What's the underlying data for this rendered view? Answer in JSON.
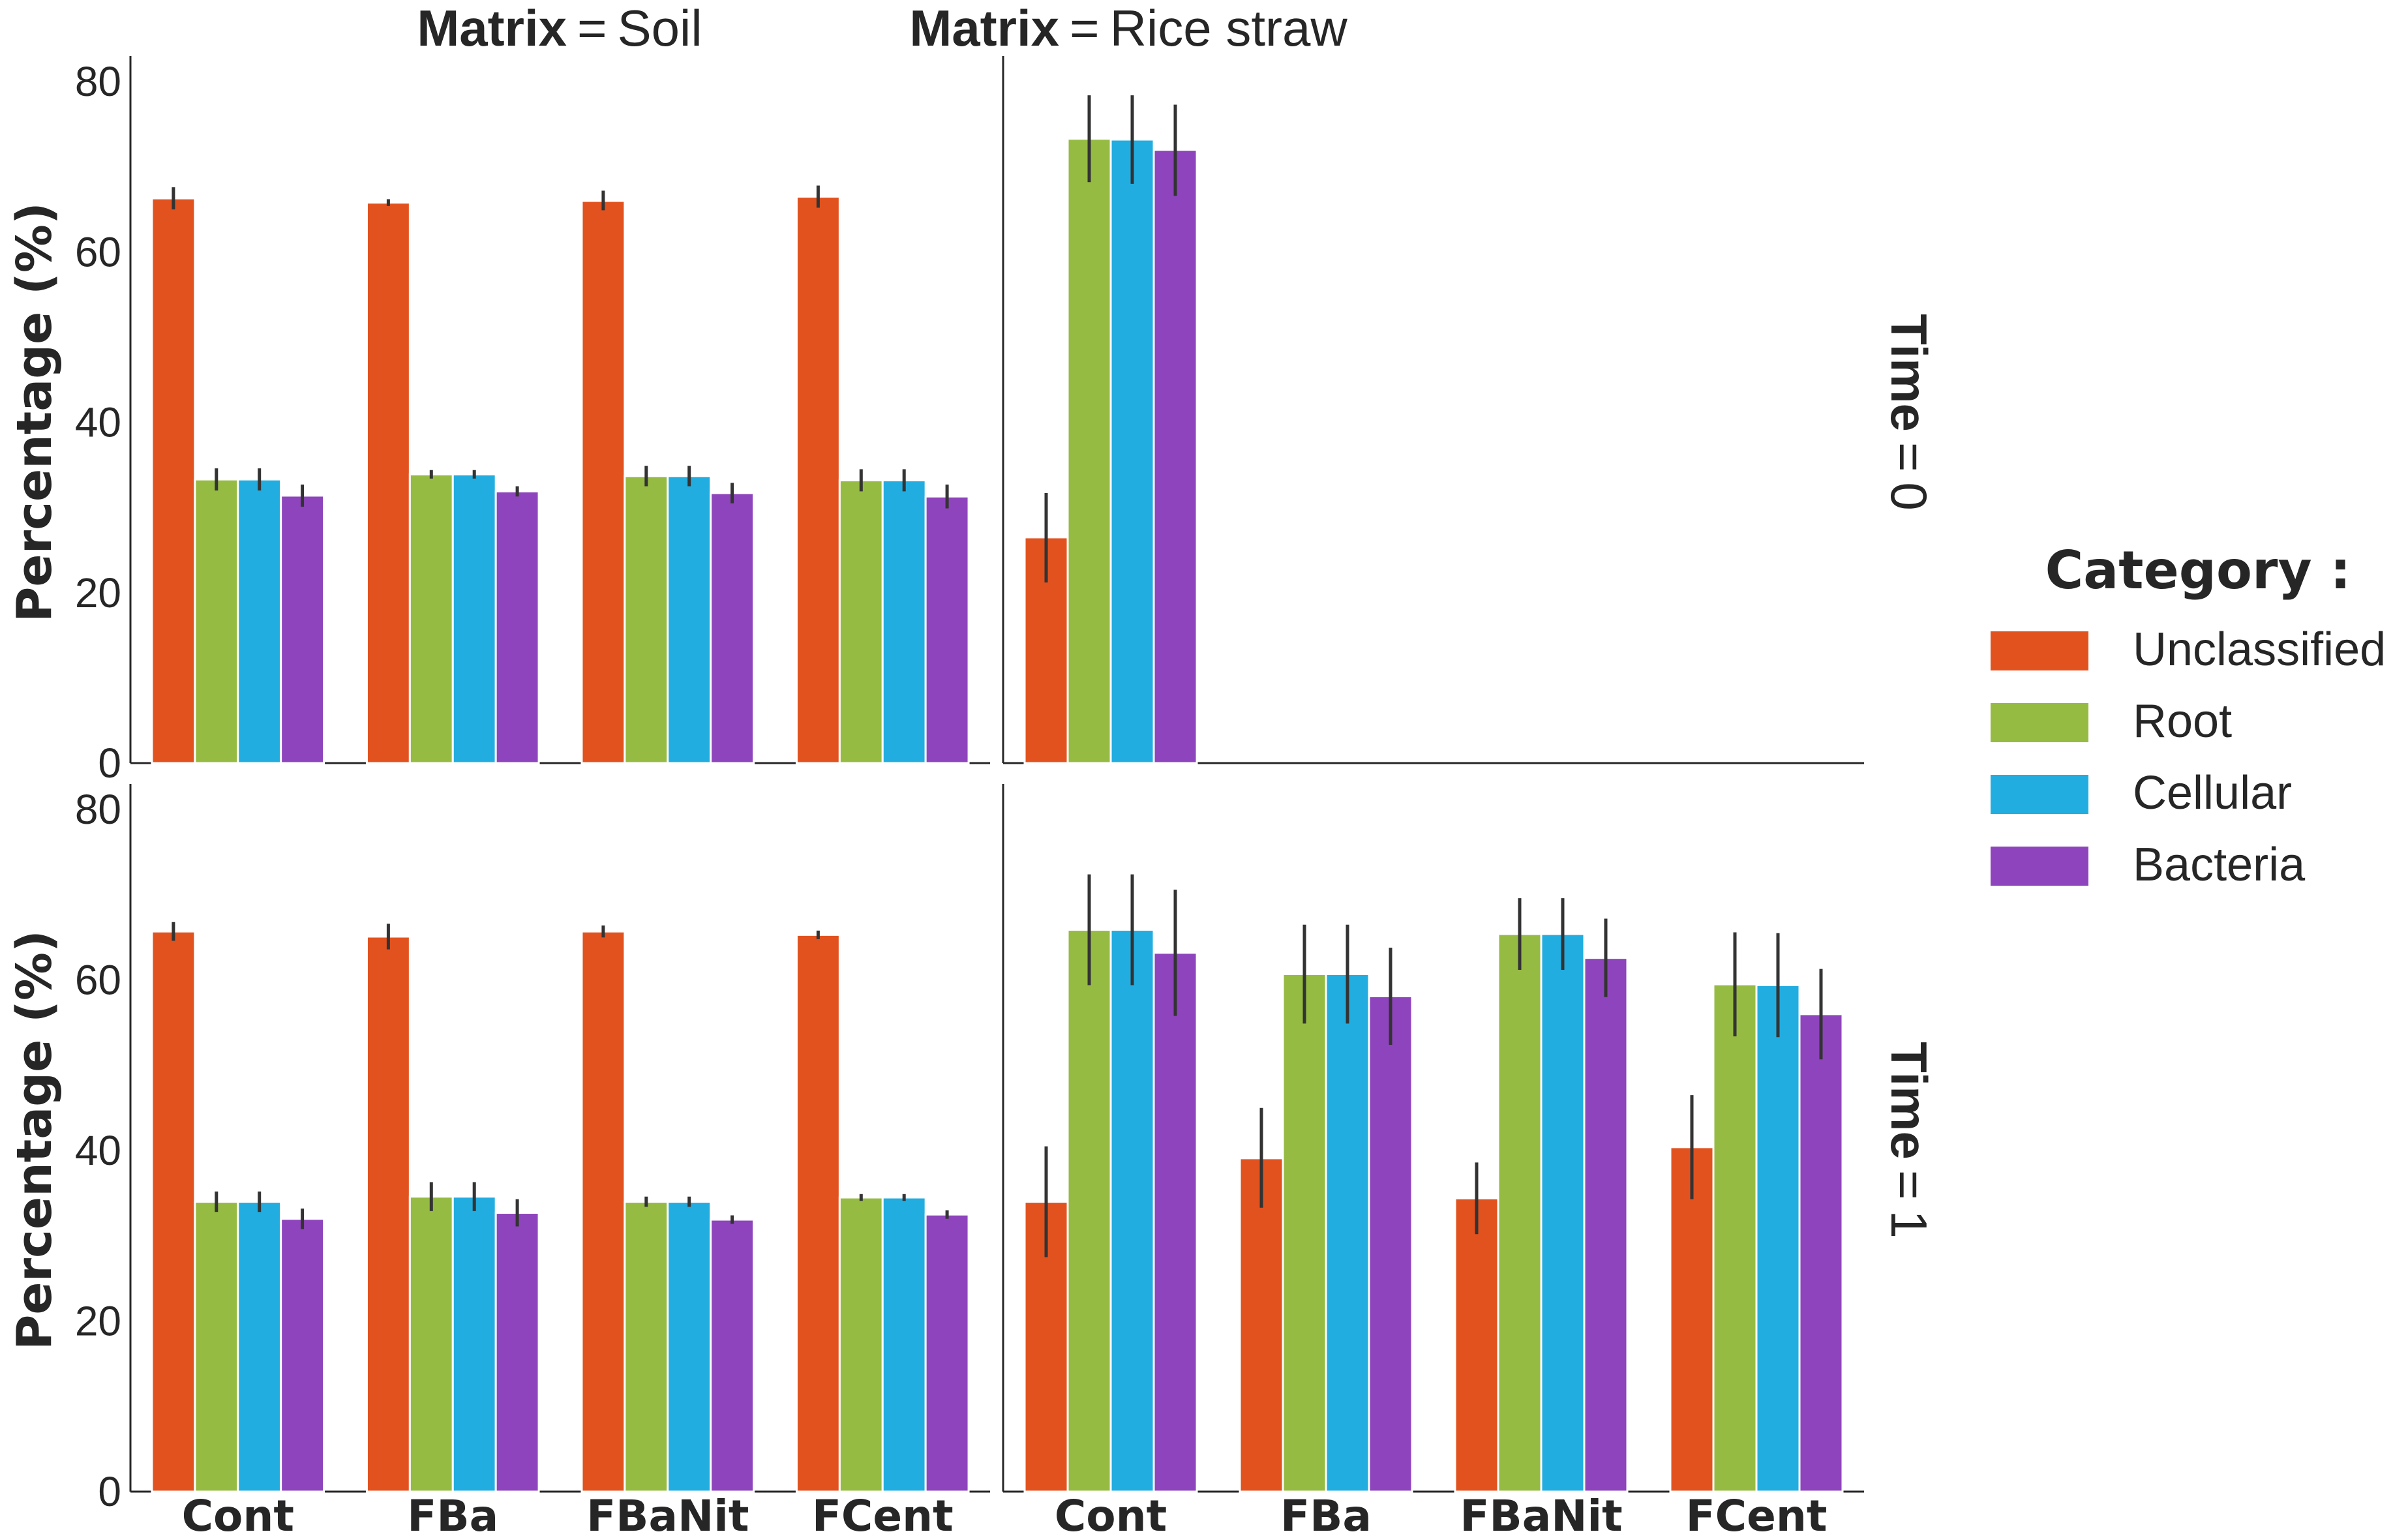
{
  "chart_data": {
    "type": "bar",
    "facet": {
      "columns": [
        {
          "key": "Matrix",
          "value": "Soil"
        },
        {
          "key": "Matrix",
          "value": "Rice straw"
        }
      ],
      "rows": [
        {
          "key": "Time",
          "value": "0"
        },
        {
          "key": "Time",
          "value": "1"
        }
      ]
    },
    "categories": [
      "Cont",
      "FBa",
      "FBaNit",
      "FCent"
    ],
    "ylabel": "Percentage (%)",
    "yticks": [
      0,
      20,
      40,
      60,
      80
    ],
    "ylim": [
      0,
      83
    ],
    "legend": {
      "title": "Category :",
      "placement": "right",
      "entries": [
        "Unclassified",
        "Root",
        "Cellular",
        "Bacteria"
      ]
    },
    "colors": {
      "Unclassified": "#e2521f",
      "Root": "#96bb43",
      "Cellular": "#22ade0",
      "Bacteria": "#8e44bc"
    },
    "errorbar_color": "#333333",
    "panels": [
      {
        "matrix": "Soil",
        "time": "0",
        "series": [
          {
            "name": "Unclassified",
            "values": [
              66.3,
              65.8,
              66.0,
              66.5
            ],
            "err_low": [
              65.0,
              65.4,
              64.9,
              65.2
            ],
            "err_high": [
              67.6,
              66.2,
              67.2,
              67.8
            ]
          },
          {
            "name": "Root",
            "values": [
              33.3,
              33.9,
              33.7,
              33.2
            ],
            "err_low": [
              32.0,
              33.4,
              32.5,
              31.9
            ],
            "err_high": [
              34.6,
              34.4,
              34.9,
              34.5
            ]
          },
          {
            "name": "Cellular",
            "values": [
              33.3,
              33.9,
              33.7,
              33.2
            ],
            "err_low": [
              32.0,
              33.4,
              32.5,
              31.9
            ],
            "err_high": [
              34.6,
              34.4,
              34.9,
              34.5
            ]
          },
          {
            "name": "Bacteria",
            "values": [
              31.4,
              31.9,
              31.7,
              31.3
            ],
            "err_low": [
              30.1,
              31.3,
              30.5,
              29.9
            ],
            "err_high": [
              32.7,
              32.5,
              32.9,
              32.7
            ]
          }
        ]
      },
      {
        "matrix": "Rice straw",
        "time": "0",
        "series": [
          {
            "name": "Unclassified",
            "values": [
              26.5,
              null,
              null,
              null
            ],
            "err_low": [
              21.2,
              null,
              null,
              null
            ],
            "err_high": [
              31.7,
              null,
              null,
              null
            ]
          },
          {
            "name": "Root",
            "values": [
              73.3,
              null,
              null,
              null
            ],
            "err_low": [
              68.2,
              null,
              null,
              null
            ],
            "err_high": [
              78.4,
              null,
              null,
              null
            ]
          },
          {
            "name": "Cellular",
            "values": [
              73.2,
              null,
              null,
              null
            ],
            "err_low": [
              68.0,
              null,
              null,
              null
            ],
            "err_high": [
              78.4,
              null,
              null,
              null
            ]
          },
          {
            "name": "Bacteria",
            "values": [
              72.0,
              null,
              null,
              null
            ],
            "err_low": [
              66.6,
              null,
              null,
              null
            ],
            "err_high": [
              77.3,
              null,
              null,
              null
            ]
          }
        ]
      },
      {
        "matrix": "Soil",
        "time": "1",
        "series": [
          {
            "name": "Unclassified",
            "values": [
              65.7,
              65.1,
              65.7,
              65.3
            ],
            "err_low": [
              64.6,
              63.6,
              65.0,
              64.8
            ],
            "err_high": [
              66.8,
              66.6,
              66.4,
              65.8
            ]
          },
          {
            "name": "Root",
            "values": [
              34.0,
              34.6,
              34.0,
              34.5
            ],
            "err_low": [
              32.8,
              32.9,
              33.4,
              34.1
            ],
            "err_high": [
              35.2,
              36.3,
              34.6,
              34.9
            ]
          },
          {
            "name": "Cellular",
            "values": [
              34.0,
              34.6,
              34.0,
              34.5
            ],
            "err_low": [
              32.8,
              32.9,
              33.4,
              34.1
            ],
            "err_high": [
              35.2,
              36.3,
              34.6,
              34.9
            ]
          },
          {
            "name": "Bacteria",
            "values": [
              32.0,
              32.7,
              31.9,
              32.5
            ],
            "err_low": [
              30.8,
              31.1,
              31.4,
              32.0
            ],
            "err_high": [
              33.2,
              34.3,
              32.4,
              33.0
            ]
          }
        ]
      },
      {
        "matrix": "Rice straw",
        "time": "1",
        "series": [
          {
            "name": "Unclassified",
            "values": [
              34.0,
              39.1,
              34.4,
              40.4
            ],
            "err_low": [
              27.5,
              33.3,
              30.2,
              34.3
            ],
            "err_high": [
              40.5,
              45.0,
              38.6,
              46.5
            ]
          },
          {
            "name": "Root",
            "values": [
              65.9,
              60.7,
              65.4,
              59.5
            ],
            "err_low": [
              59.4,
              54.9,
              61.2,
              53.4
            ],
            "err_high": [
              72.4,
              66.5,
              69.6,
              65.6
            ]
          },
          {
            "name": "Cellular",
            "values": [
              65.9,
              60.7,
              65.4,
              59.4
            ],
            "err_low": [
              59.4,
              54.9,
              61.2,
              53.3
            ],
            "err_high": [
              72.4,
              66.5,
              69.6,
              65.5
            ]
          },
          {
            "name": "Bacteria",
            "values": [
              63.2,
              58.1,
              62.6,
              56.0
            ],
            "err_low": [
              55.8,
              52.4,
              58.0,
              50.7
            ],
            "err_high": [
              70.6,
              63.8,
              67.2,
              61.3
            ]
          }
        ]
      }
    ]
  }
}
